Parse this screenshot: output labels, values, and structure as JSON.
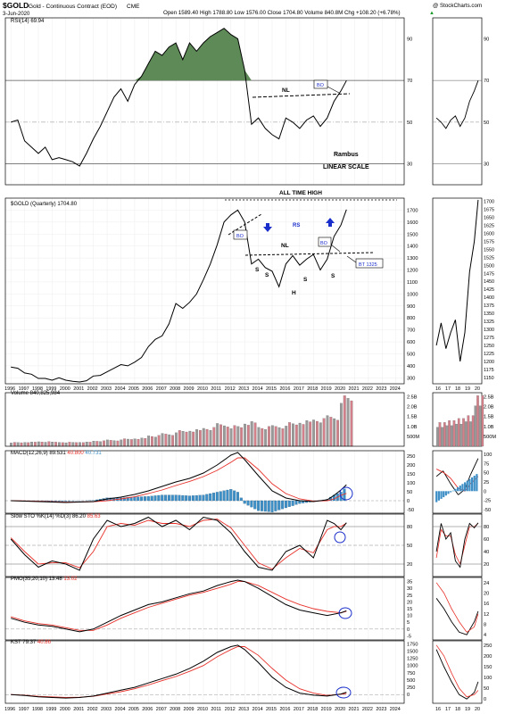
{
  "header": {
    "symbol": "$GOLD",
    "name": "Gold - Continuous Contract (EOD)",
    "exchange": "CME",
    "date": "3-Jun-2020",
    "ohlc": "Open 1589.40  High 1788.80  Low 1576.00  Close 1704.80  Volume 840.8M  Chg +108.20 (+6.78%)",
    "chg_arrow": "▲",
    "watermark": "@ StockCharts.com"
  },
  "colors": {
    "price": "#000000",
    "signal": "#e8312a",
    "histogram": "#3d8fc6",
    "volume_up": "#9a9a9a",
    "volume_down": "#d4808a",
    "rsi_fill": "#5d8a56",
    "arrows": "#1a2ecb",
    "annotation": "#1a2ecb"
  },
  "years": [
    "1996",
    "1997",
    "1998",
    "1999",
    "2000",
    "2001",
    "2002",
    "2003",
    "2004",
    "2005",
    "2006",
    "2007",
    "2008",
    "2009",
    "2010",
    "2011",
    "2012",
    "2013",
    "2014",
    "2015",
    "2016",
    "2017",
    "2018",
    "2019",
    "2020",
    "2021",
    "2022",
    "2023",
    "2024"
  ],
  "side_years": [
    "16",
    "17",
    "18",
    "19",
    "20"
  ],
  "panels": {
    "rsi": {
      "label": "RSI(14) 69.94",
      "ticks": [
        "90",
        "70",
        "50",
        "30"
      ]
    },
    "price": {
      "label": "$GOLD (Quarterly) 1704.80",
      "ticks": [
        "1700",
        "1600",
        "1500",
        "1400",
        "1300",
        "1200",
        "1100",
        "1000",
        "900",
        "800",
        "700",
        "600",
        "500",
        "400",
        "300"
      ],
      "side_ticks": [
        "1700",
        "1675",
        "1650",
        "1625",
        "1600",
        "1575",
        "1550",
        "1525",
        "1500",
        "1475",
        "1450",
        "1425",
        "1400",
        "1375",
        "1350",
        "1325",
        "1300",
        "1275",
        "1250",
        "1225",
        "1200",
        "1175",
        "1150"
      ]
    },
    "volume": {
      "label": "Volume 840,825,984",
      "ticks": [
        "2.5B",
        "2.0B",
        "1.5B",
        "1.0B",
        "500M"
      ],
      "side_ticks": [
        "2.5B",
        "2.0B",
        "1.5B",
        "1.0B",
        "500M"
      ]
    },
    "macd": {
      "label": "MACD(12,26,9)",
      "v1": "89.531",
      "v2": "40.800",
      "v3": "40.731",
      "ticks": [
        "250",
        "200",
        "150",
        "100",
        "50",
        "0",
        "-50"
      ],
      "side_ticks": [
        "100",
        "75",
        "50",
        "25",
        "0",
        "-25",
        "-50"
      ]
    },
    "sto": {
      "label": "Slow STO %K(14) %D(3)",
      "v1": "86.20",
      "v2": "85.63",
      "ticks": [
        "80",
        "50",
        "20"
      ],
      "side_ticks": [
        "80",
        "60",
        "40",
        "20"
      ]
    },
    "pmo": {
      "label": "PMO(35,20,10)",
      "v1": "13.48",
      "v2": "13.02",
      "ticks": [
        "35",
        "30",
        "25",
        "20",
        "15",
        "10",
        "5",
        "0",
        "-5"
      ],
      "side_ticks": [
        "24",
        "20",
        "16",
        "12",
        "8",
        "4"
      ]
    },
    "kst": {
      "label": "KST",
      "v1": "79.37",
      "v2": "40.86",
      "ticks": [
        "1750",
        "1500",
        "1250",
        "1000",
        "750",
        "500",
        "250",
        "0",
        "-250"
      ],
      "side_ticks": [
        "250",
        "200",
        "150",
        "100",
        "50",
        "0"
      ]
    }
  },
  "annotations": {
    "nl_rsi": "NL",
    "bo_rsi": "BO",
    "rambus": "Rambus",
    "linear": "LINEAR SCALE",
    "ath": "ALL TIME HIGH",
    "bo1": "BO",
    "rs": "RS",
    "nl_price": "NL",
    "bo2": "BO",
    "bt": "BT 1325",
    "s1": "S",
    "s2": "S",
    "h": "H",
    "s3": "S",
    "s4": "S"
  },
  "chart_data": {
    "type": "line",
    "title": "$GOLD (Quarterly)",
    "x_range": [
      1996,
      2024
    ],
    "price": {
      "x": [
        1996,
        1996.5,
        1997,
        1997.5,
        1998,
        1998.5,
        1999,
        1999.5,
        2000,
        2000.5,
        2001,
        2001.5,
        2002,
        2002.5,
        2003,
        2003.5,
        2004,
        2004.5,
        2005,
        2005.5,
        2006,
        2006.5,
        2007,
        2007.5,
        2008,
        2008.5,
        2009,
        2009.5,
        2010,
        2010.5,
        2011,
        2011.5,
        2012,
        2012.5,
        2013,
        2013.5,
        2014,
        2014.5,
        2015,
        2015.5,
        2016,
        2016.5,
        2017,
        2017.5,
        2018,
        2018.5,
        2019,
        2019.5,
        2020,
        2020.4
      ],
      "y": [
        390,
        380,
        340,
        330,
        295,
        295,
        280,
        300,
        280,
        270,
        265,
        275,
        315,
        320,
        350,
        380,
        410,
        400,
        430,
        470,
        560,
        620,
        650,
        750,
        920,
        880,
        930,
        1000,
        1120,
        1250,
        1410,
        1600,
        1660,
        1700,
        1600,
        1250,
        1290,
        1220,
        1190,
        1060,
        1250,
        1320,
        1240,
        1290,
        1330,
        1200,
        1290,
        1480,
        1575,
        1704.8
      ],
      "ylim": [
        250,
        1800
      ]
    },
    "rsi": {
      "x": [
        1996,
        1996.5,
        1997,
        1997.5,
        1998,
        1998.5,
        1999,
        1999.5,
        2000,
        2000.5,
        2001,
        2001.5,
        2002,
        2002.5,
        2003,
        2003.5,
        2004,
        2004.5,
        2005,
        2005.5,
        2006,
        2006.5,
        2007,
        2007.5,
        2008,
        2008.5,
        2009,
        2009.5,
        2010,
        2010.5,
        2011,
        2011.5,
        2012,
        2012.5,
        2013,
        2013.5,
        2014,
        2014.5,
        2015,
        2015.5,
        2016,
        2016.5,
        2017,
        2017.5,
        2018,
        2018.5,
        2019,
        2019.5,
        2020,
        2020.4
      ],
      "y": [
        50,
        51,
        41,
        38,
        35,
        38,
        32,
        33,
        32,
        31,
        29,
        35,
        42,
        48,
        55,
        62,
        66,
        60,
        68,
        72,
        78,
        84,
        82,
        86,
        88,
        80,
        88,
        84,
        88,
        91,
        93,
        95,
        92,
        90,
        75,
        49,
        52,
        47,
        44,
        42,
        52,
        50,
        47,
        51,
        53,
        48,
        52,
        60,
        65,
        69.94
      ],
      "ylim": [
        20,
        100
      ],
      "levels": [
        70,
        50,
        30
      ]
    },
    "volume": {
      "x": [
        1996,
        1997,
        1998,
        1999,
        2000,
        2001,
        2002,
        2003,
        2004,
        2005,
        2006,
        2007,
        2008,
        2009,
        2010,
        2011,
        2012,
        2013,
        2014,
        2015,
        2016,
        2017,
        2018,
        2019,
        2020
      ],
      "y": [
        0.2,
        0.22,
        0.24,
        0.22,
        0.21,
        0.22,
        0.28,
        0.32,
        0.38,
        0.42,
        0.55,
        0.65,
        0.8,
        0.85,
        0.95,
        1.15,
        1.05,
        1.25,
        1.0,
        1.05,
        1.2,
        1.3,
        1.4,
        1.55,
        2.55
      ],
      "unit": "B",
      "ylim": [
        0,
        2.7
      ]
    },
    "macd": {
      "x": [
        1996,
        1998,
        2000,
        2002,
        2003,
        2004,
        2005,
        2006,
        2007,
        2008,
        2009,
        2010,
        2011,
        2012,
        2012.5,
        2013,
        2014,
        2015,
        2016,
        2017,
        2018,
        2019,
        2019.5,
        2020,
        2020.4
      ],
      "line": [
        0,
        -5,
        -10,
        -5,
        10,
        20,
        35,
        55,
        80,
        105,
        125,
        155,
        200,
        255,
        270,
        230,
        140,
        55,
        15,
        0,
        -5,
        5,
        30,
        60,
        89.5
      ],
      "signal": [
        0,
        -3,
        -8,
        -6,
        0,
        10,
        22,
        40,
        60,
        85,
        108,
        135,
        170,
        215,
        240,
        240,
        175,
        95,
        40,
        10,
        -2,
        0,
        10,
        30,
        40.8
      ],
      "ylim": [
        -70,
        280
      ]
    },
    "sto": {
      "x": [
        1996,
        1997,
        1998,
        1999,
        2000,
        2001,
        2002,
        2003,
        2004,
        2005,
        2006,
        2007,
        2008,
        2009,
        2010,
        2011,
        2012,
        2013,
        2014,
        2015,
        2016,
        2017,
        2018,
        2019,
        2019.5,
        2020,
        2020.4
      ],
      "k": [
        60,
        35,
        15,
        25,
        20,
        10,
        60,
        90,
        80,
        85,
        95,
        80,
        90,
        75,
        95,
        90,
        70,
        40,
        15,
        10,
        40,
        50,
        30,
        90,
        85,
        75,
        86.2
      ],
      "d": [
        62,
        40,
        20,
        22,
        22,
        14,
        40,
        80,
        85,
        82,
        90,
        85,
        85,
        80,
        90,
        92,
        78,
        50,
        22,
        12,
        30,
        45,
        38,
        75,
        80,
        80,
        85.63
      ],
      "ylim": [
        0,
        100
      ],
      "levels": [
        80,
        50,
        20
      ]
    },
    "pmo": {
      "x": [
        1996,
        1997,
        1998,
        1999,
        2000,
        2001,
        2002,
        2003,
        2004,
        2005,
        2006,
        2007,
        2008,
        2009,
        2010,
        2011,
        2012,
        2012.5,
        2013,
        2014,
        2015,
        2016,
        2017,
        2018,
        2019,
        2020,
        2020.4
      ],
      "pmo": [
        8,
        5,
        3,
        2,
        0,
        -2,
        0,
        5,
        10,
        14,
        18,
        20,
        23,
        26,
        28,
        32,
        35,
        36,
        35,
        30,
        24,
        18,
        14,
        12,
        10,
        12,
        13.48
      ],
      "signal": [
        9,
        6,
        4,
        3,
        1,
        -1,
        -1,
        3,
        8,
        12,
        16,
        19,
        22,
        25,
        27,
        30,
        33,
        35,
        35,
        32,
        27,
        22,
        18,
        15,
        13,
        12,
        13.02
      ],
      "ylim": [
        -8,
        38
      ]
    },
    "kst": {
      "x": [
        1996,
        1997,
        1998,
        1999,
        2000,
        2001,
        2002,
        2003,
        2004,
        2005,
        2006,
        2007,
        2008,
        2009,
        2010,
        2011,
        2012,
        2012.5,
        2013,
        2014,
        2015,
        2016,
        2017,
        2018,
        2019,
        2020,
        2020.4
      ],
      "kst": [
        0,
        -30,
        -80,
        -100,
        -120,
        -100,
        -50,
        50,
        150,
        250,
        400,
        550,
        700,
        900,
        1150,
        1450,
        1650,
        1700,
        1550,
        1100,
        600,
        250,
        50,
        -20,
        -50,
        20,
        79.37
      ],
      "signal": [
        0,
        -20,
        -60,
        -80,
        -100,
        -90,
        -60,
        20,
        100,
        200,
        330,
        480,
        620,
        800,
        1000,
        1300,
        1550,
        1650,
        1650,
        1350,
        900,
        500,
        200,
        50,
        -30,
        10,
        40.86
      ],
      "ylim": [
        -300,
        1850
      ]
    }
  }
}
